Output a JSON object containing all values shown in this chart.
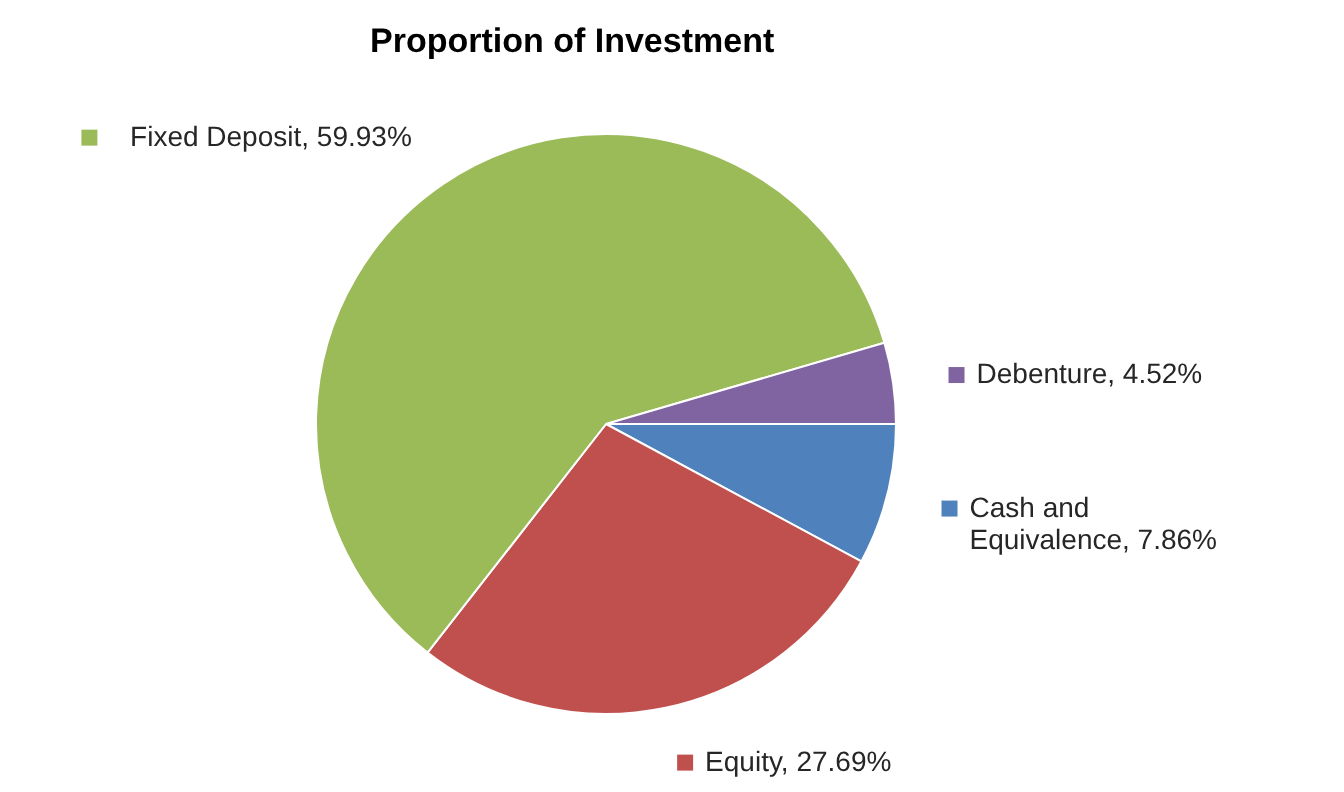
{
  "chart_data": {
    "type": "pie",
    "title": "Proportion of Investment",
    "categories": [
      "Cash and Equivalence",
      "Equity",
      "Fixed Deposit",
      "Debenture"
    ],
    "values": [
      7.86,
      27.69,
      59.93,
      4.52
    ],
    "colors": [
      "#4f81bd",
      "#c0504d",
      "#9bbb59",
      "#8064a2"
    ],
    "value_labels": [
      "7.86%",
      "27.69%",
      "59.93%",
      "4.52%"
    ],
    "legend": "right"
  }
}
